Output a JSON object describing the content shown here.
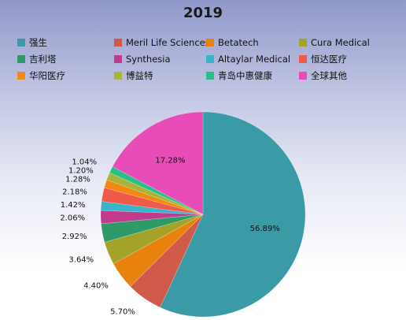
{
  "chart_data": {
    "type": "pie",
    "title": "2019",
    "legend_position": "top",
    "start_angle_deg": 0,
    "direction": "clockwise",
    "slices": [
      {
        "label": "强生",
        "value": 56.89,
        "value_label": "56.89%",
        "color": "#3a9aa6"
      },
      {
        "label": "Meril Life Sciences",
        "value": 5.7,
        "value_label": "5.70%",
        "color": "#d05a4a"
      },
      {
        "label": "Betatech",
        "value": 4.4,
        "value_label": "4.40%",
        "color": "#e8820c"
      },
      {
        "label": "Cura Medical",
        "value": 3.64,
        "value_label": "3.64%",
        "color": "#a3a32a"
      },
      {
        "label": "吉利塔",
        "value": 2.92,
        "value_label": "2.92%",
        "color": "#2e9a68"
      },
      {
        "label": "Synthesia",
        "value": 2.06,
        "value_label": "2.06%",
        "color": "#c23a8e"
      },
      {
        "label": "Altaylar Medical",
        "value": 1.42,
        "value_label": "1.42%",
        "color": "#3ab4c8"
      },
      {
        "label": "恒达医疗",
        "value": 2.18,
        "value_label": "2.18%",
        "color": "#f05a4a"
      },
      {
        "label": "华阳医疗",
        "value": 1.28,
        "value_label": "1.28%",
        "color": "#f08a10"
      },
      {
        "label": "博益特",
        "value": 1.2,
        "value_label": "1.20%",
        "color": "#a8b43a"
      },
      {
        "label": "青岛中惠健康",
        "value": 1.04,
        "value_label": "1.04%",
        "color": "#28c08a"
      },
      {
        "label": "全球其他",
        "value": 17.28,
        "value_label": "17.28%",
        "color": "#e84cb8"
      }
    ]
  }
}
